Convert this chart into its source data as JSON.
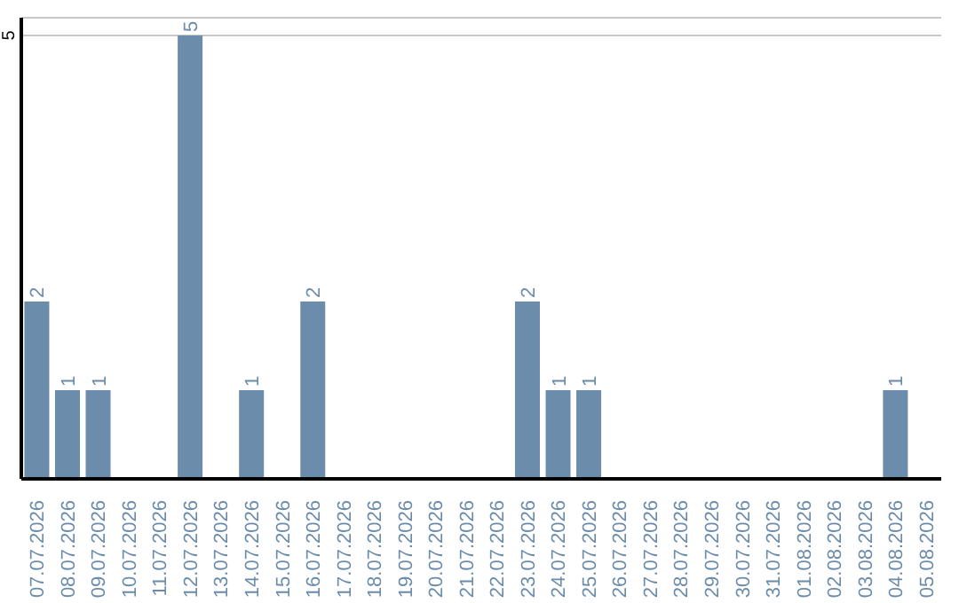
{
  "chart_data": {
    "type": "bar",
    "categories": [
      "07.07.2026",
      "08.07.2026",
      "09.07.2026",
      "10.07.2026",
      "11.07.2026",
      "12.07.2026",
      "13.07.2026",
      "14.07.2026",
      "15.07.2026",
      "16.07.2026",
      "17.07.2026",
      "18.07.2026",
      "19.07.2026",
      "20.07.2026",
      "21.07.2026",
      "22.07.2026",
      "23.07.2026",
      "24.07.2026",
      "25.07.2026",
      "26.07.2026",
      "27.07.2026",
      "28.07.2026",
      "29.07.2026",
      "30.07.2026",
      "31.07.2026",
      "01.08.2026",
      "02.08.2026",
      "03.08.2026",
      "04.08.2026",
      "05.08.2026"
    ],
    "values": [
      2,
      1,
      1,
      0,
      0,
      5,
      0,
      1,
      0,
      2,
      0,
      0,
      0,
      0,
      0,
      0,
      2,
      1,
      1,
      0,
      0,
      0,
      0,
      0,
      0,
      0,
      0,
      0,
      1,
      0
    ],
    "value_labels": [
      "2",
      "1",
      "1",
      null,
      null,
      "5",
      null,
      "1",
      null,
      "2",
      null,
      null,
      null,
      null,
      null,
      null,
      "2",
      "1",
      "1",
      null,
      null,
      null,
      null,
      null,
      null,
      null,
      null,
      null,
      "1",
      null
    ],
    "color": "#6b8cab",
    "ylim": [
      0,
      5.2
    ],
    "yticks": [
      5
    ],
    "grid": "y"
  }
}
